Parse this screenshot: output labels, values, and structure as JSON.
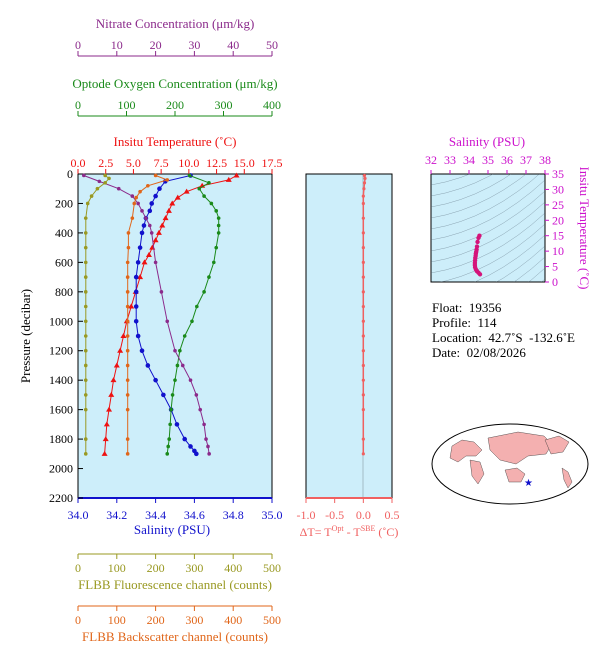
{
  "axes": {
    "nitrate": {
      "label": "Nitrate Concentration (μm/kg)",
      "ticks": [
        "0",
        "10",
        "20",
        "30",
        "40",
        "50"
      ],
      "color": "#8b2a8b"
    },
    "oxygen": {
      "label": "Optode Oxygen Concentration (μm/kg)",
      "ticks": [
        "0",
        "100",
        "200",
        "300",
        "400"
      ],
      "color": "#1a8a1a"
    },
    "temperature": {
      "label": "Insitu Temperature (˚C)",
      "ticks": [
        "0.0",
        "2.5",
        "5.0",
        "7.5",
        "10.0",
        "12.5",
        "15.0",
        "17.5"
      ],
      "color": "#ee1111"
    },
    "salinity": {
      "label": "Salinity (PSU)",
      "ticks": [
        "34.0",
        "34.2",
        "34.4",
        "34.6",
        "34.8",
        "35.0"
      ],
      "color": "#1111cc"
    },
    "pressure": {
      "label": "Pressure (decibar)",
      "ticks": [
        "0",
        "200",
        "400",
        "600",
        "800",
        "1000",
        "1200",
        "1400",
        "1600",
        "1800",
        "2000",
        "2200"
      ],
      "color": "#000000"
    },
    "fluorescence": {
      "label": "FLBB Fluorescence channel (counts)",
      "ticks": [
        "0",
        "100",
        "200",
        "300",
        "400",
        "500"
      ],
      "color": "#999922"
    },
    "backscatter": {
      "label": "FLBB Backscatter channel (counts)",
      "ticks": [
        "0",
        "100",
        "200",
        "300",
        "400",
        "500"
      ],
      "color": "#e0661a"
    },
    "dt": {
      "label_prefix": "ΔT= T",
      "sup1": "Opt",
      "label_mid": " - T",
      "sup2": "SBE",
      "label_suffix": " (˚C)",
      "ticks": [
        "-1.0",
        "-0.5",
        "0.0",
        "0.5"
      ],
      "color": "#f06060"
    },
    "ts_salinity": {
      "label": "Salinity (PSU)",
      "ticks": [
        "32",
        "33",
        "34",
        "35",
        "36",
        "37",
        "38"
      ],
      "color": "#cc11cc"
    },
    "ts_temperature": {
      "label": "Insitu Temperature (˚C)",
      "ticks": [
        "0",
        "5",
        "10",
        "15",
        "20",
        "25",
        "30",
        "35"
      ],
      "color": "#cc11cc"
    }
  },
  "info": {
    "float": "Float:  19356",
    "profile": "Profile:  114",
    "location": "Location:  42.7˚S  -132.6˚E",
    "date": "Date:  02/08/2026"
  },
  "chart_data": [
    {
      "type": "line",
      "panel": "profiles",
      "ylim": [
        2200,
        0
      ],
      "series": [
        {
          "name": "Insitu Temperature",
          "color": "#ee1111",
          "xlim": [
            0,
            17.5
          ],
          "x": [
            14.3,
            13.6,
            11.2,
            9.8,
            9.0,
            8.5,
            8.2,
            7.9,
            7.6,
            7.3,
            7.0,
            6.7,
            6.4,
            6.0,
            5.6,
            5.2,
            4.8,
            4.4,
            4.1,
            3.8,
            3.5,
            3.2,
            3.0,
            2.8,
            2.6,
            2.5,
            2.4
          ],
          "y": [
            10,
            40,
            80,
            120,
            160,
            200,
            250,
            300,
            350,
            400,
            450,
            500,
            550,
            600,
            700,
            800,
            900,
            1000,
            1100,
            1200,
            1300,
            1400,
            1500,
            1600,
            1700,
            1800,
            1900
          ]
        },
        {
          "name": "Salinity",
          "color": "#1111cc",
          "xlim": [
            34.0,
            35.0
          ],
          "x": [
            34.58,
            34.45,
            34.42,
            34.4,
            34.38,
            34.37,
            34.35,
            34.34,
            34.33,
            34.32,
            34.31,
            34.3,
            34.3,
            34.3,
            34.3,
            34.31,
            34.33,
            34.36,
            34.4,
            34.44,
            34.48,
            34.51,
            34.55,
            34.58,
            34.6,
            34.61
          ],
          "y": [
            10,
            50,
            100,
            150,
            200,
            250,
            300,
            350,
            400,
            500,
            600,
            700,
            800,
            900,
            1000,
            1100,
            1200,
            1300,
            1400,
            1500,
            1600,
            1700,
            1800,
            1850,
            1880,
            1900
          ]
        },
        {
          "name": "Oxygen",
          "color": "#1a8a1a",
          "xlim": [
            0,
            400
          ],
          "x": [
            230,
            270,
            250,
            260,
            275,
            285,
            290,
            290,
            290,
            285,
            280,
            270,
            260,
            245,
            235,
            220,
            210,
            205,
            200,
            195,
            192,
            190,
            188,
            186,
            184
          ],
          "y": [
            10,
            60,
            100,
            150,
            200,
            250,
            300,
            350,
            400,
            500,
            600,
            700,
            800,
            900,
            1000,
            1100,
            1200,
            1300,
            1400,
            1500,
            1600,
            1700,
            1800,
            1850,
            1900
          ]
        },
        {
          "name": "Nitrate",
          "color": "#8b2a8b",
          "xlim": [
            0,
            50
          ],
          "x": [
            1.5,
            5.5,
            10.5,
            14.0,
            15.5,
            16.5,
            17.5,
            18.5,
            19.0,
            20.0,
            21.5,
            23.0,
            25.0,
            27.0,
            29.0,
            30.5,
            31.5,
            32.5,
            33.0,
            33.5,
            33.8
          ],
          "y": [
            10,
            50,
            100,
            150,
            200,
            250,
            300,
            350,
            400,
            600,
            800,
            1000,
            1200,
            1300,
            1400,
            1500,
            1600,
            1700,
            1800,
            1850,
            1900
          ]
        },
        {
          "name": "Fluorescence",
          "color": "#999922",
          "xlim": [
            0,
            500
          ],
          "x": [
            70,
            80,
            70,
            50,
            35,
            25,
            20,
            20,
            20,
            20,
            20,
            20,
            20,
            20,
            20,
            20,
            20,
            20,
            20,
            20,
            20,
            20
          ],
          "y": [
            10,
            30,
            60,
            100,
            150,
            200,
            300,
            400,
            500,
            600,
            700,
            800,
            900,
            1000,
            1100,
            1200,
            1300,
            1400,
            1500,
            1600,
            1800,
            1900
          ]
        },
        {
          "name": "Backscatter",
          "color": "#e0661a",
          "xlim": [
            0,
            500
          ],
          "x": [
            200,
            230,
            180,
            160,
            150,
            145,
            140,
            130,
            130,
            128,
            128,
            128,
            128,
            128,
            128,
            128,
            128,
            128,
            128,
            128,
            128,
            128
          ],
          "y": [
            10,
            40,
            80,
            120,
            160,
            200,
            300,
            400,
            500,
            600,
            700,
            800,
            900,
            1000,
            1100,
            1200,
            1300,
            1400,
            1500,
            1600,
            1800,
            1900
          ]
        }
      ]
    },
    {
      "type": "line",
      "panel": "deltaT",
      "xlim": [
        -1.0,
        0.5
      ],
      "ylim": [
        2200,
        0
      ],
      "series": [
        {
          "color": "#f06060",
          "x": [
            0.02,
            0.03,
            0.02,
            0.01,
            0.0,
            0.0,
            0.0,
            0.0,
            0.0,
            0.0,
            0.0,
            0.0,
            0.0,
            0.0,
            0.0,
            0.0,
            0.0,
            0.0,
            0.0,
            0.0,
            0.0,
            0.0
          ],
          "y": [
            10,
            30,
            60,
            100,
            150,
            200,
            300,
            400,
            500,
            600,
            700,
            800,
            900,
            1000,
            1100,
            1200,
            1300,
            1400,
            1500,
            1600,
            1800,
            1900
          ]
        }
      ]
    },
    {
      "type": "scatter",
      "panel": "TS",
      "xlim": [
        32,
        38
      ],
      "ylim": [
        0,
        35
      ],
      "series": [
        {
          "color": "#d4147a",
          "x": [
            34.55,
            34.5,
            34.45,
            34.42,
            34.4,
            34.38,
            34.36,
            34.35,
            34.33,
            34.32,
            34.31,
            34.31,
            34.32,
            34.36,
            34.42,
            34.5,
            34.58
          ],
          "y": [
            15.0,
            14.3,
            13.0,
            11.5,
            10.5,
            9.8,
            9.2,
            8.5,
            7.8,
            7.0,
            6.2,
            5.5,
            4.8,
            4.1,
            3.5,
            3.0,
            2.5
          ]
        }
      ]
    }
  ]
}
